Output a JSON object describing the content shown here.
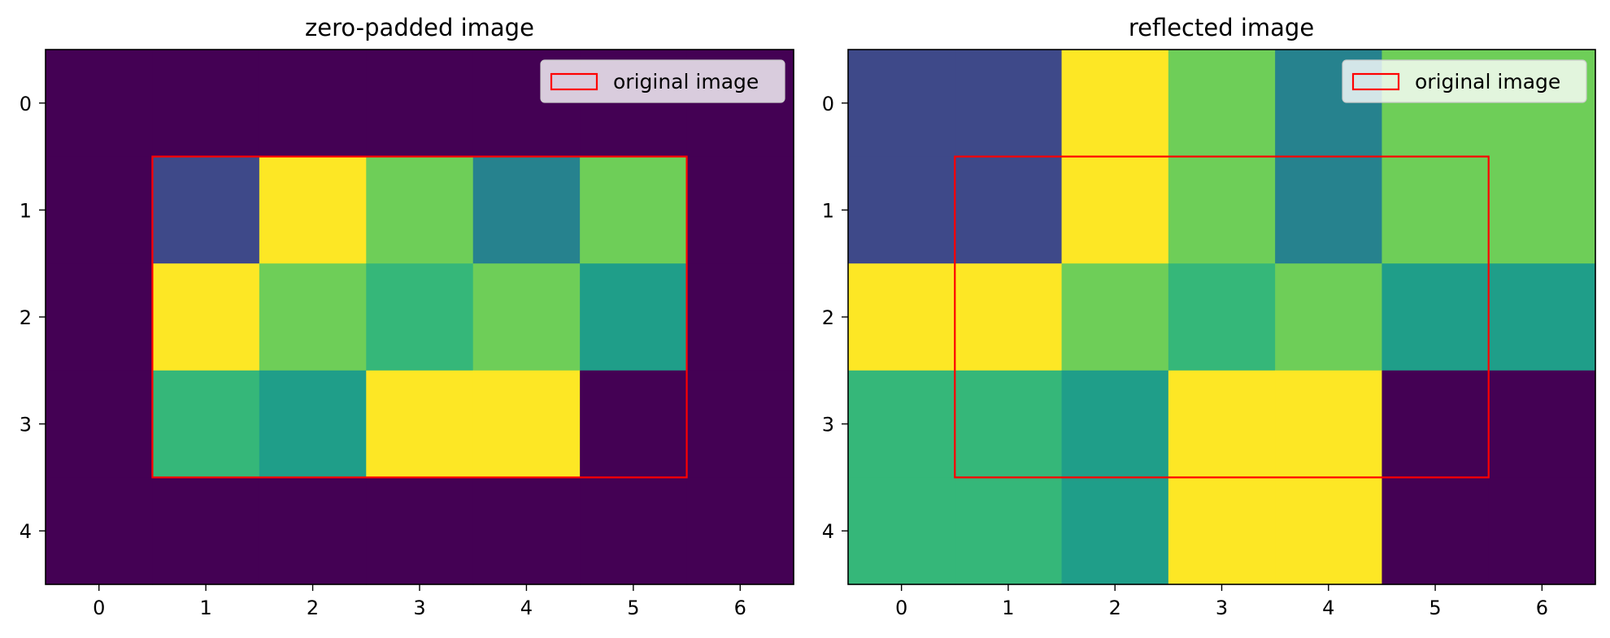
{
  "colormap": "viridis",
  "colors": {
    "frame": "#000000",
    "rectangle_edge": "#ff0000",
    "legend_bg": "#ffffff",
    "legend_edge": "#cccccc"
  },
  "chart_data": [
    {
      "type": "heatmap",
      "title": "zero-padded image",
      "xlabel": "",
      "ylabel": "",
      "xticks": [
        0,
        1,
        2,
        3,
        4,
        5,
        6
      ],
      "yticks": [
        0,
        1,
        2,
        3,
        4
      ],
      "xlim": [
        -0.5,
        6.5
      ],
      "ylim": [
        4.5,
        -0.5
      ],
      "vmin": 0,
      "vmax": 9,
      "z": [
        [
          0,
          0,
          0,
          0,
          0,
          0,
          0
        ],
        [
          0,
          2,
          9,
          7,
          4,
          7,
          0
        ],
        [
          0,
          9,
          7,
          6,
          7,
          5,
          0
        ],
        [
          0,
          6,
          5,
          9,
          9,
          0,
          0
        ],
        [
          0,
          0,
          0,
          0,
          0,
          0,
          0
        ]
      ],
      "highlight": {
        "label": "original image",
        "x": [
          0.5,
          5.5
        ],
        "y": [
          0.5,
          3.5
        ]
      },
      "legend": {
        "label": "original image",
        "position": "top-right"
      }
    },
    {
      "type": "heatmap",
      "title": "reflected image",
      "xlabel": "",
      "ylabel": "",
      "xticks": [
        0,
        1,
        2,
        3,
        4,
        5,
        6
      ],
      "yticks": [
        0,
        1,
        2,
        3,
        4
      ],
      "xlim": [
        -0.5,
        6.5
      ],
      "ylim": [
        4.5,
        -0.5
      ],
      "vmin": 0,
      "vmax": 9,
      "z": [
        [
          2,
          2,
          9,
          7,
          4,
          7,
          7
        ],
        [
          2,
          2,
          9,
          7,
          4,
          7,
          7
        ],
        [
          9,
          9,
          7,
          6,
          7,
          5,
          5
        ],
        [
          6,
          6,
          5,
          9,
          9,
          0,
          0
        ],
        [
          6,
          6,
          5,
          9,
          9,
          0,
          0
        ]
      ],
      "highlight": {
        "label": "original image",
        "x": [
          0.5,
          5.5
        ],
        "y": [
          0.5,
          3.5
        ]
      },
      "legend": {
        "label": "original image",
        "position": "top-right"
      }
    }
  ]
}
